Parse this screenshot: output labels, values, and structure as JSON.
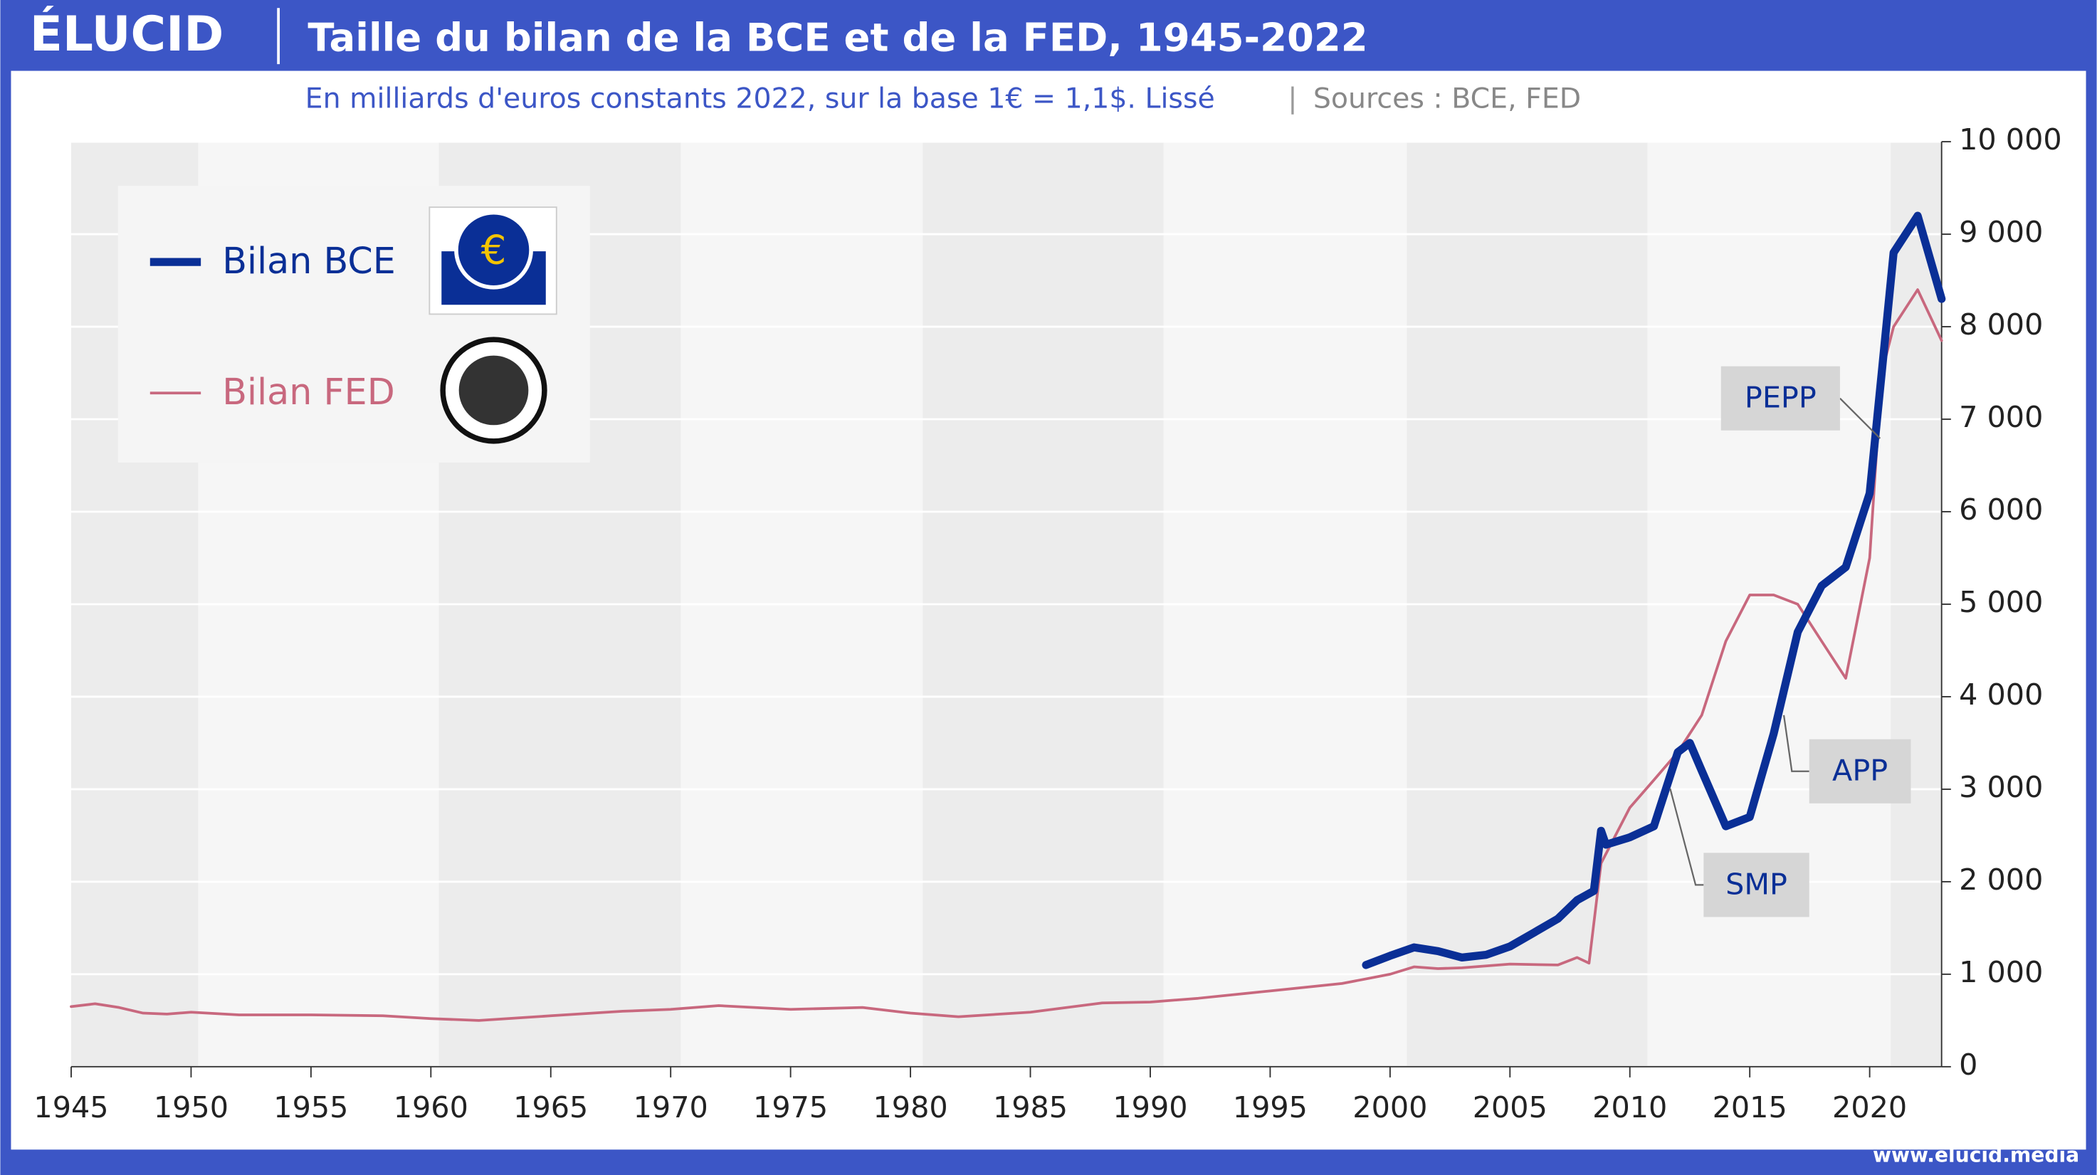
{
  "brand": "ÉLUCID",
  "footer": "www.elucid.media",
  "chart_data": {
    "type": "line",
    "title": "Taille du bilan de la BCE et de la FED, 1945-2022",
    "subtitle": "En milliards d'euros constants 2022, sur la base 1€ = 1,1$. Lissé",
    "source": "Sources : BCE, FED",
    "xlim": [
      1945,
      2023
    ],
    "xticks": [
      1945,
      1950,
      1955,
      1960,
      1965,
      1970,
      1975,
      1980,
      1985,
      1990,
      1995,
      2000,
      2005,
      2010,
      2015,
      2020
    ],
    "ylim": [
      0,
      10000
    ],
    "yticks": [
      0,
      {
        "value": 1000,
        "label": "1 000"
      },
      {
        "value": 2000,
        "label": "2 000"
      },
      {
        "value": 3000,
        "label": "3 000"
      },
      {
        "value": 4000,
        "label": "4 000"
      },
      {
        "value": 5000,
        "label": "5 000"
      },
      {
        "value": 6000,
        "label": "6 000"
      },
      {
        "value": 7000,
        "label": "7 000"
      },
      {
        "value": 8000,
        "label": "8 000"
      },
      {
        "value": 9000,
        "label": "9 000"
      },
      {
        "value": 10000,
        "label": "10 000"
      }
    ],
    "grid": true,
    "annotations": [
      "PEPP",
      "APP",
      "SMP"
    ],
    "series": [
      {
        "name": "Bilan BCE",
        "color": "#0a2f96",
        "x": [
          1999,
          2000,
          2001,
          2002,
          2003,
          2004,
          2005,
          2006,
          2007,
          2007.8,
          2008.5,
          2008.8,
          2009,
          2010,
          2011,
          2012,
          2012.5,
          2013,
          2014,
          2015,
          2016,
          2017,
          2018,
          2019,
          2020,
          2020.5,
          2021,
          2022,
          2023
        ],
        "values": [
          1100,
          1200,
          1290,
          1250,
          1180,
          1210,
          1300,
          1450,
          1600,
          1800,
          1900,
          2550,
          2400,
          2480,
          2600,
          3400,
          3500,
          3200,
          2600,
          2700,
          3600,
          4700,
          5200,
          5400,
          6200,
          7500,
          8800,
          9200,
          8300
        ]
      },
      {
        "name": "Bilan FED",
        "color": "#c8687e",
        "x": [
          1945,
          1946,
          1947,
          1948,
          1949,
          1950,
          1952,
          1955,
          1958,
          1960,
          1962,
          1965,
          1968,
          1970,
          1972,
          1975,
          1978,
          1980,
          1982,
          1985,
          1988,
          1990,
          1992,
          1995,
          1998,
          1999,
          2000,
          2001,
          2002,
          2003,
          2005,
          2007,
          2007.8,
          2008.3,
          2008.8,
          2010,
          2011,
          2012,
          2013,
          2014,
          2015,
          2016,
          2017,
          2018,
          2019,
          2020,
          2020.5,
          2021,
          2022,
          2023
        ],
        "values": [
          650,
          680,
          640,
          580,
          570,
          590,
          560,
          560,
          550,
          520,
          500,
          550,
          600,
          620,
          660,
          620,
          640,
          580,
          540,
          590,
          690,
          700,
          740,
          820,
          900,
          950,
          1000,
          1080,
          1060,
          1070,
          1110,
          1100,
          1180,
          1120,
          2200,
          2800,
          3100,
          3400,
          3800,
          4600,
          5100,
          5100,
          5000,
          4600,
          4200,
          5500,
          7500,
          8000,
          8400,
          7850
        ]
      }
    ]
  }
}
